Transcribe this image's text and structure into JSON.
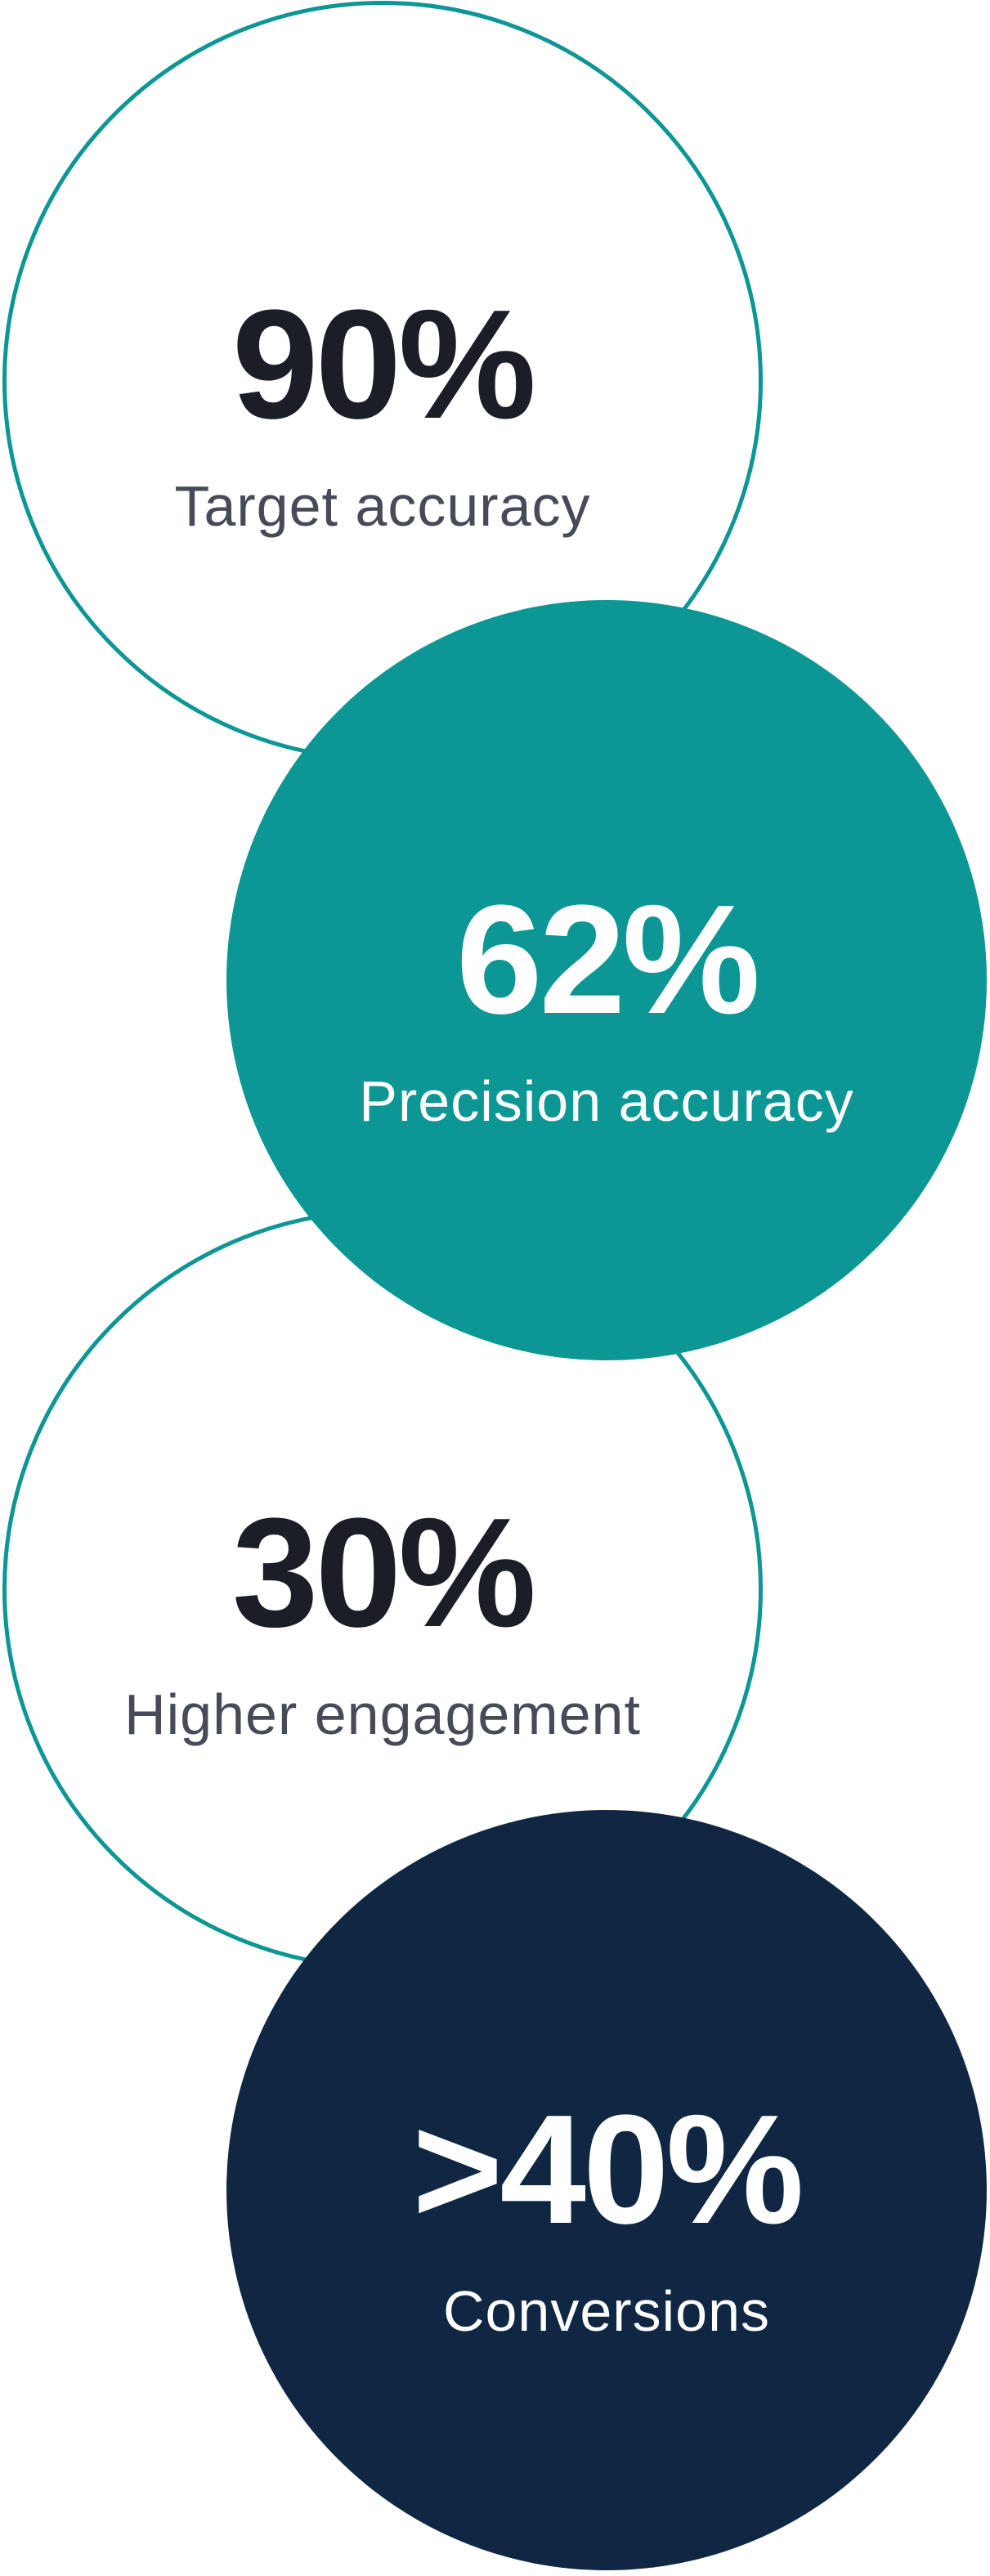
{
  "colors": {
    "teal": "#0c9694",
    "navy": "#0f2742",
    "text_dark": "#1b1e27",
    "text_muted": "#474a57"
  },
  "stats": [
    {
      "value": "90%",
      "label": "Target accuracy",
      "style": "outline"
    },
    {
      "value": "62%",
      "label": "Precision accuracy",
      "style": "filled-teal"
    },
    {
      "value": "30%",
      "label": "Higher engagement",
      "style": "outline"
    },
    {
      "value": ">40%",
      "label": "Conversions",
      "style": "filled-navy"
    }
  ]
}
